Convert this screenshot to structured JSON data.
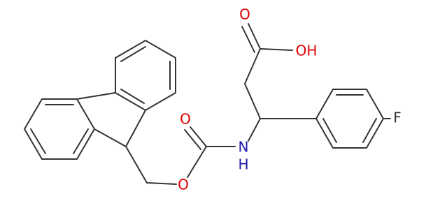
{
  "atoms": {
    "acid_carbonyl_o": "O",
    "acid_oh": "OH",
    "carbamate_carbonyl_o": "O",
    "amide_n": "N",
    "amide_h": "H",
    "ester_o": "O",
    "fluorine": "F"
  }
}
